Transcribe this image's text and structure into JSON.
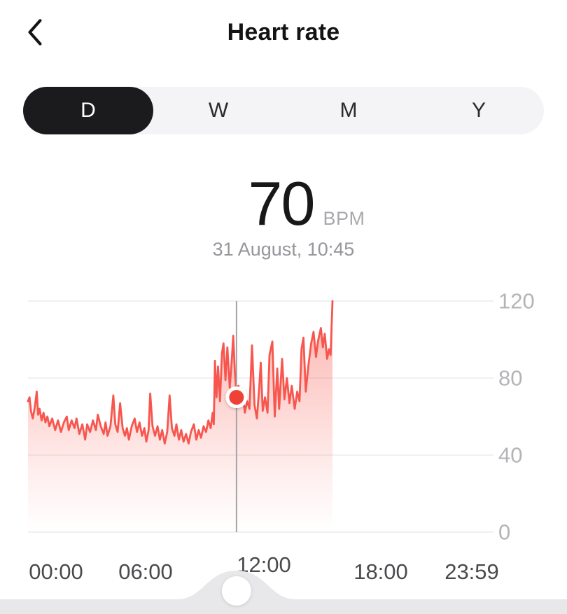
{
  "header": {
    "title": "Heart rate",
    "back_icon": "chevron-left"
  },
  "range_tabs": {
    "options": [
      "D",
      "W",
      "M",
      "Y"
    ],
    "selected": "D"
  },
  "reading": {
    "value": "70",
    "unit": "BPM",
    "datetime": "31 August, 10:45"
  },
  "colors": {
    "line": "#f7564e",
    "fill_base": "#f8655c",
    "dot": "#f04137",
    "grid": "#ebebed",
    "y_label": "#b4b4b8",
    "x_label": "#4a4a4e",
    "cursor_line": "#a3a3a6",
    "tab_selected_bg": "#1b1b1d",
    "tab_track_bg": "#f4f4f6",
    "scrubber_track": "#e8e8ea",
    "handle": "#ffffff"
  },
  "chart_data": {
    "type": "line",
    "title": "Heart rate during day (31 August)",
    "x_unit": "hours",
    "xlim": [
      0,
      24
    ],
    "ylim": [
      0,
      120
    ],
    "grid": "horizontal",
    "legend": "none",
    "yticks": [
      120,
      80,
      40,
      0
    ],
    "xticks": [
      "00:00",
      "06:00",
      "12:00",
      "18:00",
      "23:59"
    ],
    "xtick_hours": [
      0,
      6,
      12,
      18,
      23.983
    ],
    "cursor": {
      "hour": 10.75,
      "bpm": 70,
      "time_label": "10:45"
    },
    "data_end_hour": 15.7,
    "series": [
      {
        "name": "heart_rate_bpm",
        "points": [
          [
            0,
            68
          ],
          [
            0.08,
            70
          ],
          [
            0.15,
            63
          ],
          [
            0.25,
            59
          ],
          [
            0.35,
            65
          ],
          [
            0.45,
            73
          ],
          [
            0.52,
            61
          ],
          [
            0.6,
            64
          ],
          [
            0.7,
            58
          ],
          [
            0.8,
            62
          ],
          [
            0.9,
            57
          ],
          [
            1.0,
            60
          ],
          [
            1.1,
            55
          ],
          [
            1.25,
            59
          ],
          [
            1.4,
            53
          ],
          [
            1.55,
            58
          ],
          [
            1.7,
            52
          ],
          [
            1.85,
            57
          ],
          [
            2.0,
            60
          ],
          [
            2.1,
            53
          ],
          [
            2.25,
            58
          ],
          [
            2.4,
            54
          ],
          [
            2.5,
            59
          ],
          [
            2.65,
            51
          ],
          [
            2.8,
            56
          ],
          [
            2.95,
            48
          ],
          [
            3.05,
            56
          ],
          [
            3.2,
            52
          ],
          [
            3.35,
            58
          ],
          [
            3.5,
            53
          ],
          [
            3.6,
            61
          ],
          [
            3.75,
            55
          ],
          [
            3.9,
            51
          ],
          [
            4.0,
            57
          ],
          [
            4.1,
            50
          ],
          [
            4.25,
            55
          ],
          [
            4.4,
            71
          ],
          [
            4.5,
            56
          ],
          [
            4.62,
            52
          ],
          [
            4.75,
            67
          ],
          [
            4.88,
            54
          ],
          [
            5.0,
            50
          ],
          [
            5.1,
            54
          ],
          [
            5.2,
            48
          ],
          [
            5.35,
            55
          ],
          [
            5.5,
            59
          ],
          [
            5.62,
            52
          ],
          [
            5.75,
            57
          ],
          [
            5.88,
            50
          ],
          [
            6.0,
            54
          ],
          [
            6.1,
            47
          ],
          [
            6.22,
            53
          ],
          [
            6.3,
            72
          ],
          [
            6.42,
            55
          ],
          [
            6.55,
            50
          ],
          [
            6.68,
            55
          ],
          [
            6.8,
            48
          ],
          [
            6.92,
            53
          ],
          [
            7.05,
            46
          ],
          [
            7.18,
            52
          ],
          [
            7.3,
            71
          ],
          [
            7.42,
            54
          ],
          [
            7.55,
            50
          ],
          [
            7.65,
            56
          ],
          [
            7.78,
            48
          ],
          [
            7.9,
            53
          ],
          [
            8.02,
            47
          ],
          [
            8.15,
            51
          ],
          [
            8.28,
            46
          ],
          [
            8.4,
            52
          ],
          [
            8.55,
            56
          ],
          [
            8.68,
            48
          ],
          [
            8.8,
            53
          ],
          [
            8.92,
            49
          ],
          [
            9.05,
            55
          ],
          [
            9.18,
            52
          ],
          [
            9.3,
            58
          ],
          [
            9.42,
            54
          ],
          [
            9.52,
            62
          ],
          [
            9.58,
            56
          ],
          [
            9.64,
            89
          ],
          [
            9.72,
            70
          ],
          [
            9.8,
            86
          ],
          [
            9.9,
            68
          ],
          [
            10.0,
            93
          ],
          [
            10.08,
            98
          ],
          [
            10.18,
            79
          ],
          [
            10.28,
            96
          ],
          [
            10.4,
            75
          ],
          [
            10.5,
            88
          ],
          [
            10.58,
            102
          ],
          [
            10.66,
            84
          ],
          [
            10.75,
            70
          ],
          [
            10.85,
            76
          ],
          [
            10.95,
            66
          ],
          [
            11.05,
            73
          ],
          [
            11.18,
            62
          ],
          [
            11.3,
            68
          ],
          [
            11.42,
            64
          ],
          [
            11.55,
            97
          ],
          [
            11.68,
            66
          ],
          [
            11.8,
            59
          ],
          [
            11.92,
            75
          ],
          [
            12.0,
            88
          ],
          [
            12.1,
            63
          ],
          [
            12.22,
            70
          ],
          [
            12.35,
            62
          ],
          [
            12.45,
            92
          ],
          [
            12.6,
            99
          ],
          [
            12.72,
            60
          ],
          [
            12.85,
            85
          ],
          [
            12.95,
            64
          ],
          [
            13.1,
            90
          ],
          [
            13.22,
            69
          ],
          [
            13.35,
            80
          ],
          [
            13.48,
            67
          ],
          [
            13.6,
            76
          ],
          [
            13.75,
            64
          ],
          [
            13.88,
            73
          ],
          [
            14.0,
            68
          ],
          [
            14.1,
            95
          ],
          [
            14.2,
            101
          ],
          [
            14.32,
            73
          ],
          [
            14.45,
            86
          ],
          [
            14.6,
            98
          ],
          [
            14.72,
            104
          ],
          [
            14.85,
            91
          ],
          [
            14.95,
            99
          ],
          [
            15.1,
            106
          ],
          [
            15.2,
            96
          ],
          [
            15.3,
            103
          ],
          [
            15.42,
            90
          ],
          [
            15.52,
            95
          ],
          [
            15.6,
            92
          ],
          [
            15.7,
            120
          ]
        ]
      }
    ]
  },
  "scrubber": {
    "handle_hour": 10.75
  }
}
